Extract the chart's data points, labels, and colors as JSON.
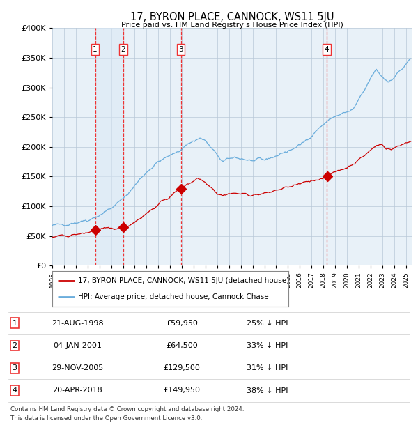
{
  "title": "17, BYRON PLACE, CANNOCK, WS11 5JU",
  "subtitle": "Price paid vs. HM Land Registry's House Price Index (HPI)",
  "legend_line1": "17, BYRON PLACE, CANNOCK, WS11 5JU (detached house)",
  "legend_line2": "HPI: Average price, detached house, Cannock Chase",
  "footer1": "Contains HM Land Registry data © Crown copyright and database right 2024.",
  "footer2": "This data is licensed under the Open Government Licence v3.0.",
  "transactions": [
    {
      "num": 1,
      "date": "21-AUG-1998",
      "date_dec": 1998.64,
      "price": 59950,
      "pct": "25% ↓ HPI"
    },
    {
      "num": 2,
      "date": "04-JAN-2001",
      "date_dec": 2001.01,
      "price": 64500,
      "pct": "33% ↓ HPI"
    },
    {
      "num": 3,
      "date": "29-NOV-2005",
      "date_dec": 2005.91,
      "price": 129500,
      "pct": "31% ↓ HPI"
    },
    {
      "num": 4,
      "date": "20-APR-2018",
      "date_dec": 2018.3,
      "price": 149950,
      "pct": "38% ↓ HPI"
    }
  ],
  "hpi_color": "#6aaddc",
  "price_color": "#cc0000",
  "vline_color": "#ee3333",
  "shade_color": "#dae8f5",
  "background_color": "#e8f1f8",
  "grid_color": "#b8c8d8",
  "ylim": [
    0,
    400000
  ],
  "xlim_start": 1995.0,
  "xlim_end": 2025.5
}
